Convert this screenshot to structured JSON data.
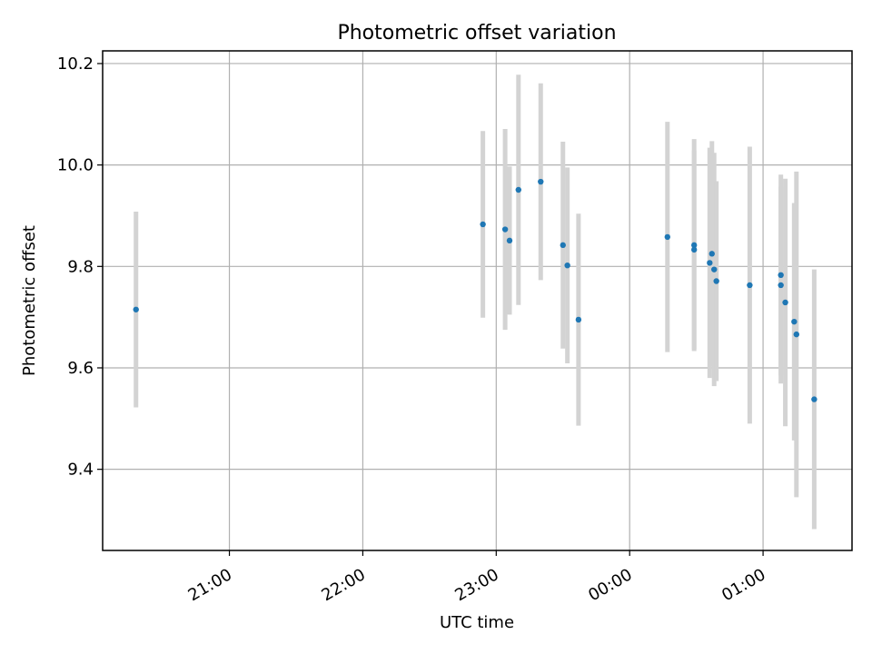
{
  "chart_data": {
    "type": "scatter",
    "title": "Photometric offset variation",
    "xlabel": "UTC time",
    "ylabel": "Photometric offset",
    "x_axis": "time",
    "xlim": [
      "20:03",
      "01:40"
    ],
    "ylim": [
      9.24,
      10.225
    ],
    "x_ticks": [
      "21:00",
      "22:00",
      "23:00",
      "00:00",
      "01:00"
    ],
    "y_ticks": [
      9.4,
      9.6,
      9.8,
      10.0,
      10.2
    ],
    "y_tick_labels": [
      "9.4",
      "9.6",
      "9.8",
      "10.0",
      "10.2"
    ],
    "grid": true,
    "colors": {
      "points": "#1f77b4",
      "error_bars": "#d3d3d3",
      "grid": "#b0b0b0"
    },
    "points": [
      {
        "t": "20:18",
        "y": 9.715,
        "err": 0.193
      },
      {
        "t": "22:54",
        "y": 9.883,
        "err": 0.184
      },
      {
        "t": "23:04",
        "y": 9.873,
        "err": 0.198
      },
      {
        "t": "23:06",
        "y": 9.851,
        "err": 0.146
      },
      {
        "t": "23:10",
        "y": 9.951,
        "err": 0.227
      },
      {
        "t": "23:20",
        "y": 9.967,
        "err": 0.194
      },
      {
        "t": "23:30",
        "y": 9.842,
        "err": 0.204
      },
      {
        "t": "23:32",
        "y": 9.802,
        "err": 0.193
      },
      {
        "t": "23:37",
        "y": 9.695,
        "err": 0.209
      },
      {
        "t": "00:17",
        "y": 9.858,
        "err": 0.227
      },
      {
        "t": "00:29",
        "y": 9.842,
        "err": 0.209
      },
      {
        "t": "00:29",
        "y": 9.833,
        "err": 0.196
      },
      {
        "t": "00:36",
        "y": 9.807,
        "err": 0.227
      },
      {
        "t": "00:37",
        "y": 9.825,
        "err": 0.222
      },
      {
        "t": "00:38",
        "y": 9.794,
        "err": 0.23
      },
      {
        "t": "00:39",
        "y": 9.771,
        "err": 0.197
      },
      {
        "t": "00:54",
        "y": 9.763,
        "err": 0.273
      },
      {
        "t": "01:08",
        "y": 9.783,
        "err": 0.198
      },
      {
        "t": "01:08",
        "y": 9.763,
        "err": 0.194
      },
      {
        "t": "01:10",
        "y": 9.729,
        "err": 0.244
      },
      {
        "t": "01:14",
        "y": 9.691,
        "err": 0.234
      },
      {
        "t": "01:15",
        "y": 9.666,
        "err": 0.321
      },
      {
        "t": "01:23",
        "y": 9.538,
        "err": 0.256
      }
    ]
  }
}
